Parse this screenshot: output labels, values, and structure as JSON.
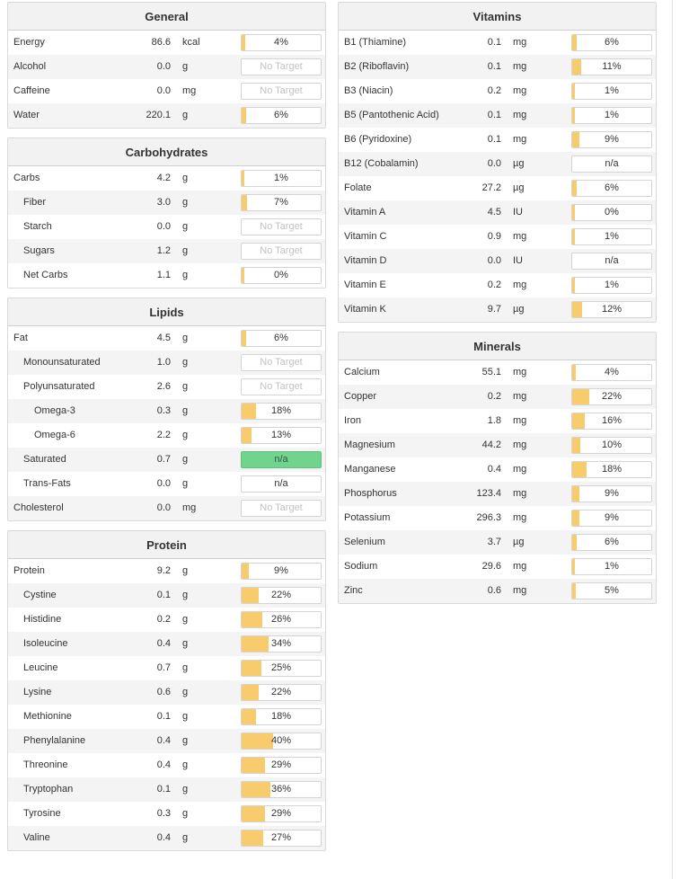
{
  "colors": {
    "bar_fill": "#f8cb6d",
    "met_target": "#72d38f",
    "no_target_text": "#c2c2c2"
  },
  "left_panels": [
    {
      "id": "general",
      "title": "General",
      "rows": [
        {
          "name": "Energy",
          "amount": "86.6",
          "unit": "kcal",
          "target": "4%",
          "pct": 4,
          "indent": 0
        },
        {
          "name": "Alcohol",
          "amount": "0.0",
          "unit": "g",
          "target": "No Target",
          "pct": null,
          "indent": 0
        },
        {
          "name": "Caffeine",
          "amount": "0.0",
          "unit": "mg",
          "target": "No Target",
          "pct": null,
          "indent": 0
        },
        {
          "name": "Water",
          "amount": "220.1",
          "unit": "g",
          "target": "6%",
          "pct": 6,
          "indent": 0
        }
      ]
    },
    {
      "id": "carbohydrates",
      "title": "Carbohydrates",
      "rows": [
        {
          "name": "Carbs",
          "amount": "4.2",
          "unit": "g",
          "target": "1%",
          "pct": 1,
          "indent": 0
        },
        {
          "name": "Fiber",
          "amount": "3.0",
          "unit": "g",
          "target": "7%",
          "pct": 7,
          "indent": 1
        },
        {
          "name": "Starch",
          "amount": "0.0",
          "unit": "g",
          "target": "No Target",
          "pct": null,
          "indent": 1
        },
        {
          "name": "Sugars",
          "amount": "1.2",
          "unit": "g",
          "target": "No Target",
          "pct": null,
          "indent": 1
        },
        {
          "name": "Net Carbs",
          "amount": "1.1",
          "unit": "g",
          "target": "0%",
          "pct": 0,
          "indent": 1
        }
      ]
    },
    {
      "id": "lipids",
      "title": "Lipids",
      "rows": [
        {
          "name": "Fat",
          "amount": "4.5",
          "unit": "g",
          "target": "6%",
          "pct": 6,
          "indent": 0
        },
        {
          "name": "Monounsaturated",
          "amount": "1.0",
          "unit": "g",
          "target": "No Target",
          "pct": null,
          "indent": 1
        },
        {
          "name": "Polyunsaturated",
          "amount": "2.6",
          "unit": "g",
          "target": "No Target",
          "pct": null,
          "indent": 1
        },
        {
          "name": "Omega-3",
          "amount": "0.3",
          "unit": "g",
          "target": "18%",
          "pct": 18,
          "indent": 2
        },
        {
          "name": "Omega-6",
          "amount": "2.2",
          "unit": "g",
          "target": "13%",
          "pct": 13,
          "indent": 2
        },
        {
          "name": "Saturated",
          "amount": "0.7",
          "unit": "g",
          "target": "n/a",
          "pct": null,
          "indent": 1,
          "met": true
        },
        {
          "name": "Trans-Fats",
          "amount": "0.0",
          "unit": "g",
          "target": "n/a",
          "pct": null,
          "indent": 1
        },
        {
          "name": "Cholesterol",
          "amount": "0.0",
          "unit": "mg",
          "target": "No Target",
          "pct": null,
          "indent": 0
        }
      ]
    },
    {
      "id": "protein",
      "title": "Protein",
      "rows": [
        {
          "name": "Protein",
          "amount": "9.2",
          "unit": "g",
          "target": "9%",
          "pct": 9,
          "indent": 0
        },
        {
          "name": "Cystine",
          "amount": "0.1",
          "unit": "g",
          "target": "22%",
          "pct": 22,
          "indent": 1
        },
        {
          "name": "Histidine",
          "amount": "0.2",
          "unit": "g",
          "target": "26%",
          "pct": 26,
          "indent": 1
        },
        {
          "name": "Isoleucine",
          "amount": "0.4",
          "unit": "g",
          "target": "34%",
          "pct": 34,
          "indent": 1
        },
        {
          "name": "Leucine",
          "amount": "0.7",
          "unit": "g",
          "target": "25%",
          "pct": 25,
          "indent": 1
        },
        {
          "name": "Lysine",
          "amount": "0.6",
          "unit": "g",
          "target": "22%",
          "pct": 22,
          "indent": 1
        },
        {
          "name": "Methionine",
          "amount": "0.1",
          "unit": "g",
          "target": "18%",
          "pct": 18,
          "indent": 1
        },
        {
          "name": "Phenylalanine",
          "amount": "0.4",
          "unit": "g",
          "target": "40%",
          "pct": 40,
          "indent": 1
        },
        {
          "name": "Threonine",
          "amount": "0.4",
          "unit": "g",
          "target": "29%",
          "pct": 29,
          "indent": 1
        },
        {
          "name": "Tryptophan",
          "amount": "0.1",
          "unit": "g",
          "target": "36%",
          "pct": 36,
          "indent": 1
        },
        {
          "name": "Tyrosine",
          "amount": "0.3",
          "unit": "g",
          "target": "29%",
          "pct": 29,
          "indent": 1
        },
        {
          "name": "Valine",
          "amount": "0.4",
          "unit": "g",
          "target": "27%",
          "pct": 27,
          "indent": 1
        }
      ]
    }
  ],
  "right_panels": [
    {
      "id": "vitamins",
      "title": "Vitamins",
      "rows": [
        {
          "name": "B1 (Thiamine)",
          "amount": "0.1",
          "unit": "mg",
          "target": "6%",
          "pct": 6,
          "indent": 0
        },
        {
          "name": "B2 (Riboflavin)",
          "amount": "0.1",
          "unit": "mg",
          "target": "11%",
          "pct": 11,
          "indent": 0
        },
        {
          "name": "B3 (Niacin)",
          "amount": "0.2",
          "unit": "mg",
          "target": "1%",
          "pct": 1,
          "indent": 0
        },
        {
          "name": "B5 (Pantothenic Acid)",
          "amount": "0.1",
          "unit": "mg",
          "target": "1%",
          "pct": 1,
          "indent": 0
        },
        {
          "name": "B6 (Pyridoxine)",
          "amount": "0.1",
          "unit": "mg",
          "target": "9%",
          "pct": 9,
          "indent": 0
        },
        {
          "name": "B12 (Cobalamin)",
          "amount": "0.0",
          "unit": "µg",
          "target": "n/a",
          "pct": null,
          "indent": 0
        },
        {
          "name": "Folate",
          "amount": "27.2",
          "unit": "µg",
          "target": "6%",
          "pct": 6,
          "indent": 0
        },
        {
          "name": "Vitamin A",
          "amount": "4.5",
          "unit": "IU",
          "target": "0%",
          "pct": 0,
          "indent": 0
        },
        {
          "name": "Vitamin C",
          "amount": "0.9",
          "unit": "mg",
          "target": "1%",
          "pct": 1,
          "indent": 0
        },
        {
          "name": "Vitamin D",
          "amount": "0.0",
          "unit": "IU",
          "target": "n/a",
          "pct": null,
          "indent": 0
        },
        {
          "name": "Vitamin E",
          "amount": "0.2",
          "unit": "mg",
          "target": "1%",
          "pct": 1,
          "indent": 0
        },
        {
          "name": "Vitamin K",
          "amount": "9.7",
          "unit": "µg",
          "target": "12%",
          "pct": 12,
          "indent": 0
        }
      ]
    },
    {
      "id": "minerals",
      "title": "Minerals",
      "rows": [
        {
          "name": "Calcium",
          "amount": "55.1",
          "unit": "mg",
          "target": "4%",
          "pct": 4,
          "indent": 0
        },
        {
          "name": "Copper",
          "amount": "0.2",
          "unit": "mg",
          "target": "22%",
          "pct": 22,
          "indent": 0
        },
        {
          "name": "Iron",
          "amount": "1.8",
          "unit": "mg",
          "target": "16%",
          "pct": 16,
          "indent": 0
        },
        {
          "name": "Magnesium",
          "amount": "44.2",
          "unit": "mg",
          "target": "10%",
          "pct": 10,
          "indent": 0
        },
        {
          "name": "Manganese",
          "amount": "0.4",
          "unit": "mg",
          "target": "18%",
          "pct": 18,
          "indent": 0
        },
        {
          "name": "Phosphorus",
          "amount": "123.4",
          "unit": "mg",
          "target": "9%",
          "pct": 9,
          "indent": 0
        },
        {
          "name": "Potassium",
          "amount": "296.3",
          "unit": "mg",
          "target": "9%",
          "pct": 9,
          "indent": 0
        },
        {
          "name": "Selenium",
          "amount": "3.7",
          "unit": "µg",
          "target": "6%",
          "pct": 6,
          "indent": 0
        },
        {
          "name": "Sodium",
          "amount": "29.6",
          "unit": "mg",
          "target": "1%",
          "pct": 1,
          "indent": 0
        },
        {
          "name": "Zinc",
          "amount": "0.6",
          "unit": "mg",
          "target": "5%",
          "pct": 5,
          "indent": 0
        }
      ]
    }
  ]
}
